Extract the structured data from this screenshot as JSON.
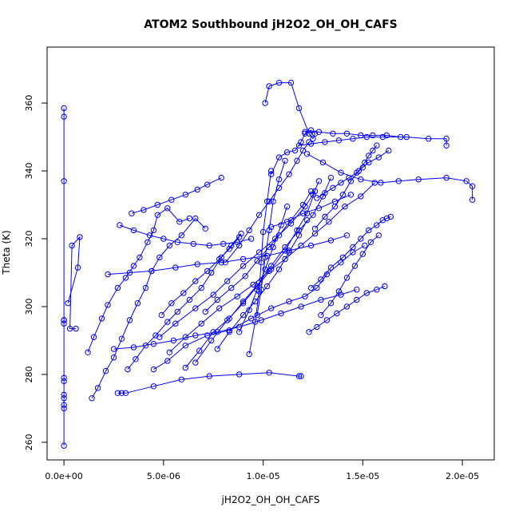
{
  "chart_data": {
    "type": "line",
    "title": "ATOM2 Southbound jH2O2_OH_OH_CAFS",
    "xlabel": "jH2O2_OH_OH_CAFS",
    "ylabel": "Theta (K)",
    "xlim": [
      -8.45e-07,
      2.16e-05
    ],
    "ylim": [
      254.8,
      376.5
    ],
    "x_ticks": [
      {
        "value": 0,
        "label": "0.0e+00"
      },
      {
        "value": 5e-06,
        "label": "5.0e-06"
      },
      {
        "value": 1e-05,
        "label": "1.0e-05"
      },
      {
        "value": 1.5e-05,
        "label": "1.5e-05"
      },
      {
        "value": 2e-05,
        "label": "2.0e-05"
      }
    ],
    "y_ticks": [
      {
        "value": 260,
        "label": "260"
      },
      {
        "value": 280,
        "label": "280"
      },
      {
        "value": 300,
        "label": "300"
      },
      {
        "value": 320,
        "label": "320"
      },
      {
        "value": 340,
        "label": "340"
      },
      {
        "value": 360,
        "label": "360"
      }
    ],
    "grid": false,
    "legend": "none",
    "colors": {
      "series": "#0000ff",
      "axes": "#000000"
    },
    "series": [
      {
        "x": [
          0,
          0,
          0,
          0,
          0,
          0,
          0,
          0,
          0,
          0,
          0,
          0,
          0,
          0
        ],
        "y": [
          259,
          270,
          271,
          273,
          274,
          278,
          279,
          295,
          296,
          296,
          337,
          356,
          358.5,
          296
        ]
      },
      {
        "x": [
          2e-07,
          7e-07,
          8e-07,
          4e-07,
          3e-07,
          6e-07
        ],
        "y": [
          301,
          311.5,
          320.5,
          318,
          293.5,
          293.5
        ]
      },
      {
        "x": [
          1.2e-06,
          1.5e-06,
          1.9e-06,
          2.2e-06,
          2.7e-06,
          3.1e-06,
          3.5e-06,
          3.8e-06,
          4.2e-06,
          4.5e-06,
          4.7e-06,
          5.2e-06,
          5.8e-06,
          6.3e-06
        ],
        "y": [
          286.5,
          291,
          296.5,
          300.5,
          305.5,
          308.5,
          312,
          314.5,
          319,
          322.5,
          327,
          329,
          325,
          326
        ]
      },
      {
        "x": [
          1.4e-06,
          1.7e-06,
          2.1e-06,
          2.5e-06,
          2.9e-06,
          3.3e-06,
          3.7e-06,
          4.1e-06,
          4.4e-06,
          4.8e-06,
          5.3e-06,
          5.9e-06,
          6.6e-06,
          7.1e-06
        ],
        "y": [
          273,
          276,
          281,
          285,
          290.5,
          296,
          301,
          305.5,
          310.5,
          314.5,
          318,
          321,
          326,
          323
        ]
      },
      {
        "x": [
          2.7e-06,
          2.9e-06,
          3.1e-06,
          4.5e-06,
          5.9e-06,
          7.3e-06,
          8.8e-06,
          1.03e-05,
          1.18e-05,
          1.19e-05
        ],
        "y": [
          274.5,
          274.5,
          274.5,
          276.5,
          278.5,
          279.5,
          280,
          280.5,
          279.5,
          279.5
        ]
      },
      {
        "x": [
          3.2e-06,
          3.6e-06,
          4.1e-06,
          4.6e-06,
          5.2e-06,
          5.7e-06,
          6.3e-06,
          6.9e-06,
          7.4e-06,
          7.9e-06,
          8.4e-06,
          8.9e-06
        ],
        "y": [
          281.5,
          284.5,
          288.5,
          291.5,
          295.5,
          298.5,
          302,
          305.5,
          310,
          314.5,
          318,
          321.5
        ]
      },
      {
        "x": [
          4.5e-06,
          5.2e-06,
          6.1e-06,
          7.2e-06,
          8.3e-06,
          9.4e-06,
          1.04e-05,
          1.13e-05,
          1.21e-05,
          1.27e-05,
          1.32e-05,
          1.39e-05,
          1.45e-05,
          1.51e-05
        ],
        "y": [
          281.5,
          284,
          288.5,
          291.5,
          293,
          296.5,
          299.5,
          301.5,
          303,
          305.5,
          309.5,
          313,
          316,
          318
        ]
      },
      {
        "x": [
          4.8e-06,
          5.6e-06,
          6.6e-06,
          7.5e-06,
          8.2e-06,
          9e-06,
          9.8e-06,
          1.06e-05,
          1.14e-05,
          1.21e-05,
          1.25e-05,
          1.28e-05
        ],
        "y": [
          291,
          295,
          299.5,
          303.5,
          307.5,
          312,
          316,
          320,
          324.5,
          329.5,
          333,
          337
        ]
      },
      {
        "x": [
          5.3e-06,
          6.1e-06,
          6.9e-06,
          7.8e-06,
          8.7e-06,
          9.5e-06,
          1.03e-05,
          1.11e-05,
          1.19e-05,
          1.26e-05,
          1.33e-05,
          1.41e-05,
          1.49e-05,
          1.56e-05
        ],
        "y": [
          286.5,
          291,
          295,
          299.5,
          303,
          306.5,
          310.5,
          314,
          318,
          321.5,
          325,
          329.5,
          332.5,
          336.5
        ]
      },
      {
        "x": [
          6.1e-06,
          6.8e-06,
          7.5e-06,
          8.3e-06,
          9e-06,
          9.8e-06,
          1.04e-05,
          1.11e-05,
          1.18e-05,
          1.25e-05,
          1.3e-05,
          1.34e-05
        ],
        "y": [
          282,
          287,
          292.5,
          296.5,
          301.5,
          307,
          312,
          317.5,
          322.5,
          327,
          332.5,
          338
        ]
      },
      {
        "x": [
          6.6e-06,
          7.4e-06,
          8.2e-06,
          9e-06,
          9.7e-06,
          1.04e-05,
          1.11e-05,
          1.17e-05,
          1.22e-05,
          1.26e-05
        ],
        "y": [
          283.5,
          290,
          296,
          301,
          306,
          311,
          316.5,
          322.5,
          327.5,
          334
        ]
      },
      {
        "x": [
          7.1e-06,
          7.7e-06,
          8.4e-06,
          9.1e-06,
          9.7e-06,
          1.03e-05,
          1.08e-05,
          1.14e-05,
          1.2e-05,
          1.24e-05
        ],
        "y": [
          298.5,
          302,
          305.5,
          309,
          313.5,
          317.5,
          321,
          325.5,
          330,
          334
        ]
      },
      {
        "x": [
          7.7e-06,
          8.3e-06,
          9e-06,
          9.6e-06,
          1.02e-05,
          1.08e-05,
          1.13e-05,
          1.18e-05,
          1.22e-05
        ],
        "y": [
          287.5,
          292.5,
          297.5,
          301.5,
          306,
          311,
          316,
          321,
          325.5
        ]
      },
      {
        "x": [
          8.1e-06,
          8.8e-06,
          9.3e-06,
          9.8e-06,
          1.03e-05,
          1.08e-05,
          1.13e-05,
          1.17e-05,
          1.2e-05,
          1.23e-05
        ],
        "y": [
          313,
          318,
          322.5,
          327,
          331,
          335,
          339,
          343,
          346,
          348.5
        ]
      },
      {
        "x": [
          8.8e-06,
          9.3e-06,
          9.7e-06,
          1.01e-05,
          1.05e-05,
          1.09e-05,
          1.12e-05
        ],
        "y": [
          292.5,
          299,
          305,
          311,
          317.5,
          324,
          329.5
        ]
      },
      {
        "x": [
          9.3e-06,
          9.6e-06,
          9.8e-06,
          9.9e-06,
          1e-05,
          1.02e-05,
          1.04e-05
        ],
        "y": [
          286,
          295.5,
          304.5,
          313,
          322,
          331,
          340
        ]
      },
      {
        "x": [
          9.7e-06,
          9.9e-06,
          1.01e-05,
          1.03e-05,
          1.05e-05,
          1.08e-05,
          1.11e-05
        ],
        "y": [
          297.5,
          305,
          314.5,
          322.5,
          331,
          337.5,
          343
        ]
      },
      {
        "x": [
          1.04e-05,
          1.08e-05,
          1.12e-05,
          1.16e-05,
          1.19e-05,
          1.21e-05,
          1.24e-05,
          1.26e-05,
          1.25e-05,
          1.23e-05,
          1.18e-05,
          1.14e-05,
          1.08e-05,
          1.03e-05,
          1.01e-05
        ],
        "y": [
          339,
          344,
          345.5,
          346,
          348.5,
          351,
          352,
          351,
          349.5,
          351,
          358.5,
          366,
          366,
          365,
          360
        ]
      },
      {
        "x": [
          1.18e-05,
          1.24e-05,
          1.31e-05,
          1.38e-05,
          1.45e-05,
          1.52e-05,
          1.6e-05,
          1.72e-05,
          1.83e-05,
          1.92e-05,
          1.92e-05
        ],
        "y": [
          347.5,
          348,
          348.5,
          349,
          349.5,
          350,
          350,
          350,
          349.5,
          349.5,
          347.5
        ]
      },
      {
        "x": [
          1.21e-05,
          1.28e-05,
          1.35e-05,
          1.42e-05,
          1.49e-05,
          1.55e-05,
          1.62e-05,
          1.69e-05
        ],
        "y": [
          351.5,
          351.5,
          351,
          351,
          350.5,
          350.5,
          350.5,
          350
        ]
      },
      {
        "x": [
          1.22e-05,
          1.3e-05,
          1.39e-05,
          1.49e-05,
          1.59e-05,
          1.68e-05,
          1.78e-05,
          1.92e-05,
          2.02e-05,
          2.05e-05,
          2.05e-05
        ],
        "y": [
          345,
          342.5,
          339.5,
          337.5,
          336.5,
          337,
          337.5,
          338,
          337,
          335.5,
          331.5
        ]
      },
      {
        "x": [
          1.23e-05,
          1.27e-05,
          1.32e-05,
          1.37e-05,
          1.42e-05,
          1.47e-05,
          1.52e-05,
          1.57e-05,
          1.61e-05
        ],
        "y": [
          292.5,
          294,
          296,
          298,
          300,
          302,
          304,
          305,
          306
        ]
      },
      {
        "x": [
          1.24e-05,
          1.29e-05,
          1.34e-05,
          1.4e-05,
          1.45e-05,
          1.49e-05,
          1.53e-05,
          1.57e-05,
          1.6e-05,
          1.62e-05,
          1.64e-05
        ],
        "y": [
          305.5,
          308,
          311.5,
          314.5,
          317.5,
          320,
          322.5,
          324,
          325.5,
          326,
          326.5
        ]
      },
      {
        "x": [
          1.26e-05,
          1.31e-05,
          1.36e-05,
          1.4e-05,
          1.44e-05,
          1.48e-05,
          1.51e-05,
          1.53e-05,
          1.55e-05,
          1.57e-05
        ],
        "y": [
          323,
          326.5,
          329.5,
          333,
          337,
          340,
          342.5,
          344.5,
          346,
          347.5
        ]
      },
      {
        "x": [
          1.27e-05,
          1.31e-05,
          1.35e-05,
          1.39e-05,
          1.43e-05,
          1.47e-05,
          1.5e-05,
          1.53e-05,
          1.58e-05,
          1.63e-05
        ],
        "y": [
          332,
          333.5,
          335,
          336.5,
          338,
          339.5,
          341,
          342.5,
          344,
          346
        ]
      },
      {
        "x": [
          1.29e-05,
          1.34e-05,
          1.38e-05,
          1.42e-05,
          1.46e-05,
          1.5e-05,
          1.54e-05,
          1.58e-05
        ],
        "y": [
          297.5,
          301,
          304.5,
          308.5,
          312,
          315.5,
          319,
          321
        ]
      },
      {
        "x": [
          2.5e-06,
          3.5e-06,
          4.5e-06,
          5.5e-06,
          6.6e-06,
          7.7e-06,
          8.8e-06,
          9.9e-06,
          1.09e-05,
          1.19e-05,
          1.29e-05,
          1.39e-05,
          1.47e-05
        ],
        "y": [
          287.5,
          288,
          289,
          290,
          291.5,
          292.5,
          294,
          296,
          298,
          300,
          302,
          303.5,
          305
        ]
      },
      {
        "x": [
          2.2e-06,
          3.3e-06,
          4.4e-06,
          5.6e-06,
          6.7e-06,
          7.9e-06,
          9e-06,
          1.02e-05,
          1.13e-05,
          1.24e-05,
          1.34e-05,
          1.42e-05
        ],
        "y": [
          309.5,
          310,
          310.5,
          311.5,
          312.5,
          313,
          314,
          315,
          316.5,
          318,
          319.5,
          321
        ]
      },
      {
        "x": [
          2.8e-06,
          3.5e-06,
          4.3e-06,
          5e-06,
          5.7e-06,
          6.5e-06,
          7.3e-06,
          8e-06,
          8.7e-06,
          9.4e-06
        ],
        "y": [
          324,
          322.5,
          321,
          320,
          319,
          318.5,
          318,
          318.5,
          319,
          320
        ]
      },
      {
        "x": [
          3.4e-06,
          4e-06,
          4.7e-06,
          5.4e-06,
          6.1e-06,
          6.7e-06,
          7.2e-06,
          7.9e-06
        ],
        "y": [
          327.5,
          328.5,
          330,
          331.5,
          333,
          334.5,
          336,
          338
        ]
      },
      {
        "x": [
          4.9e-06,
          5.4e-06,
          6e-06,
          6.6e-06,
          7.2e-06,
          7.8e-06,
          8.3e-06,
          8.8e-06
        ],
        "y": [
          297.5,
          301,
          304,
          307.5,
          310.5,
          314,
          317,
          320.5
        ]
      },
      {
        "x": [
          1.04e-05,
          1.12e-05,
          1.2e-05,
          1.28e-05,
          1.36e-05,
          1.44e-05
        ],
        "y": [
          323.5,
          325,
          327.5,
          329,
          331,
          333
        ]
      }
    ]
  }
}
